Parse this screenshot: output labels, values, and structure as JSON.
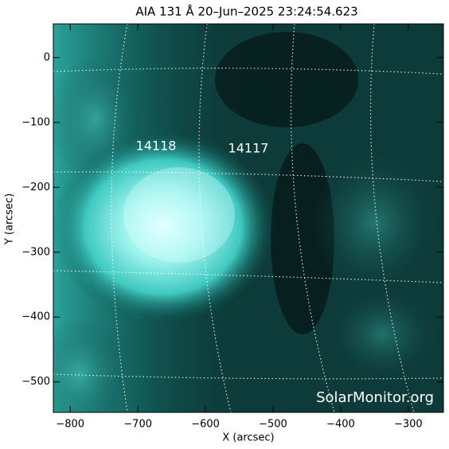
{
  "chart_data": {
    "type": "image",
    "title": "AIA 131 Å 20–Jun–2025 23:24:54.623",
    "xlabel": "X (arcsec)",
    "ylabel": "Y (arcsec)",
    "xlim": [
      -825,
      -248
    ],
    "ylim": [
      -547,
      52
    ],
    "xticks": [
      {
        "value": -800,
        "label": "−800"
      },
      {
        "value": -700,
        "label": "−700"
      },
      {
        "value": -600,
        "label": "−600"
      },
      {
        "value": -500,
        "label": "−500"
      },
      {
        "value": -400,
        "label": "−400"
      },
      {
        "value": -300,
        "label": "−300"
      }
    ],
    "yticks": [
      0,
      {
        "value": -100,
        "label": "−100"
      },
      {
        "value": -200,
        "label": "−200"
      },
      {
        "value": -300,
        "label": "−300"
      },
      {
        "value": -400,
        "label": "−400"
      },
      {
        "value": -500,
        "label": "−500"
      }
    ],
    "annotations": [
      "14118",
      "14117",
      "SolarMonitor.org"
    ]
  }
}
